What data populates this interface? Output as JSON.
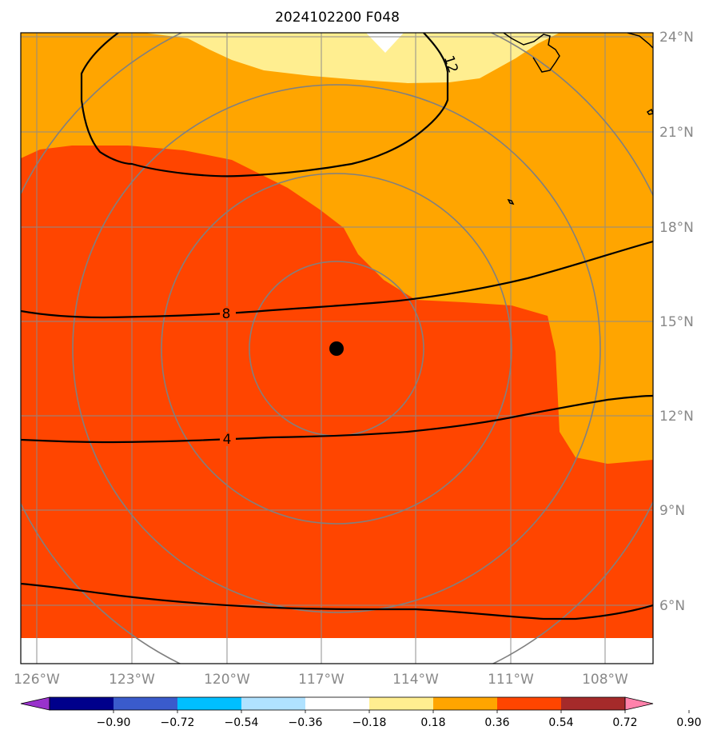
{
  "title": "2024102200 F048",
  "map": {
    "lon_range": [
      -126.5,
      -106.5
    ],
    "lat_range": [
      4,
      24
    ],
    "lon_ticks": [
      -126,
      -123,
      -120,
      -117,
      -114,
      -111,
      -108
    ],
    "lat_ticks": [
      6,
      9,
      12,
      15,
      18,
      21,
      24
    ],
    "lon_labels": [
      "126°W",
      "123°W",
      "120°W",
      "117°W",
      "114°W",
      "111°W",
      "108°W"
    ],
    "lat_labels": [
      "6°N",
      "9°N",
      "12°N",
      "15°N",
      "18°N",
      "21°N",
      "24°N"
    ],
    "center_marker": {
      "lon": -116.5,
      "lat": 14.1,
      "label": ""
    },
    "range_rings": "concentric circles around center marker",
    "contour_labels": [
      "4",
      "8",
      "12"
    ],
    "fill_colors": {
      "high": "#ff4500",
      "mid": "#ffa500",
      "low": "#ffee90",
      "zero": "#ffffff"
    }
  },
  "colorbar": {
    "colors": [
      "#9932cc",
      "#00008b",
      "#3a5bcc",
      "#00bfff",
      "#b0e2ff",
      "#ffffff",
      "#ffee90",
      "#ffa500",
      "#ff4500",
      "#a52a2a",
      "#ff82ab"
    ],
    "tick_labels": [
      "−0.90",
      "−0.72",
      "−0.54",
      "−0.36",
      "−0.18",
      "0.18",
      "0.36",
      "0.54",
      "0.72",
      "0.90"
    ]
  }
}
